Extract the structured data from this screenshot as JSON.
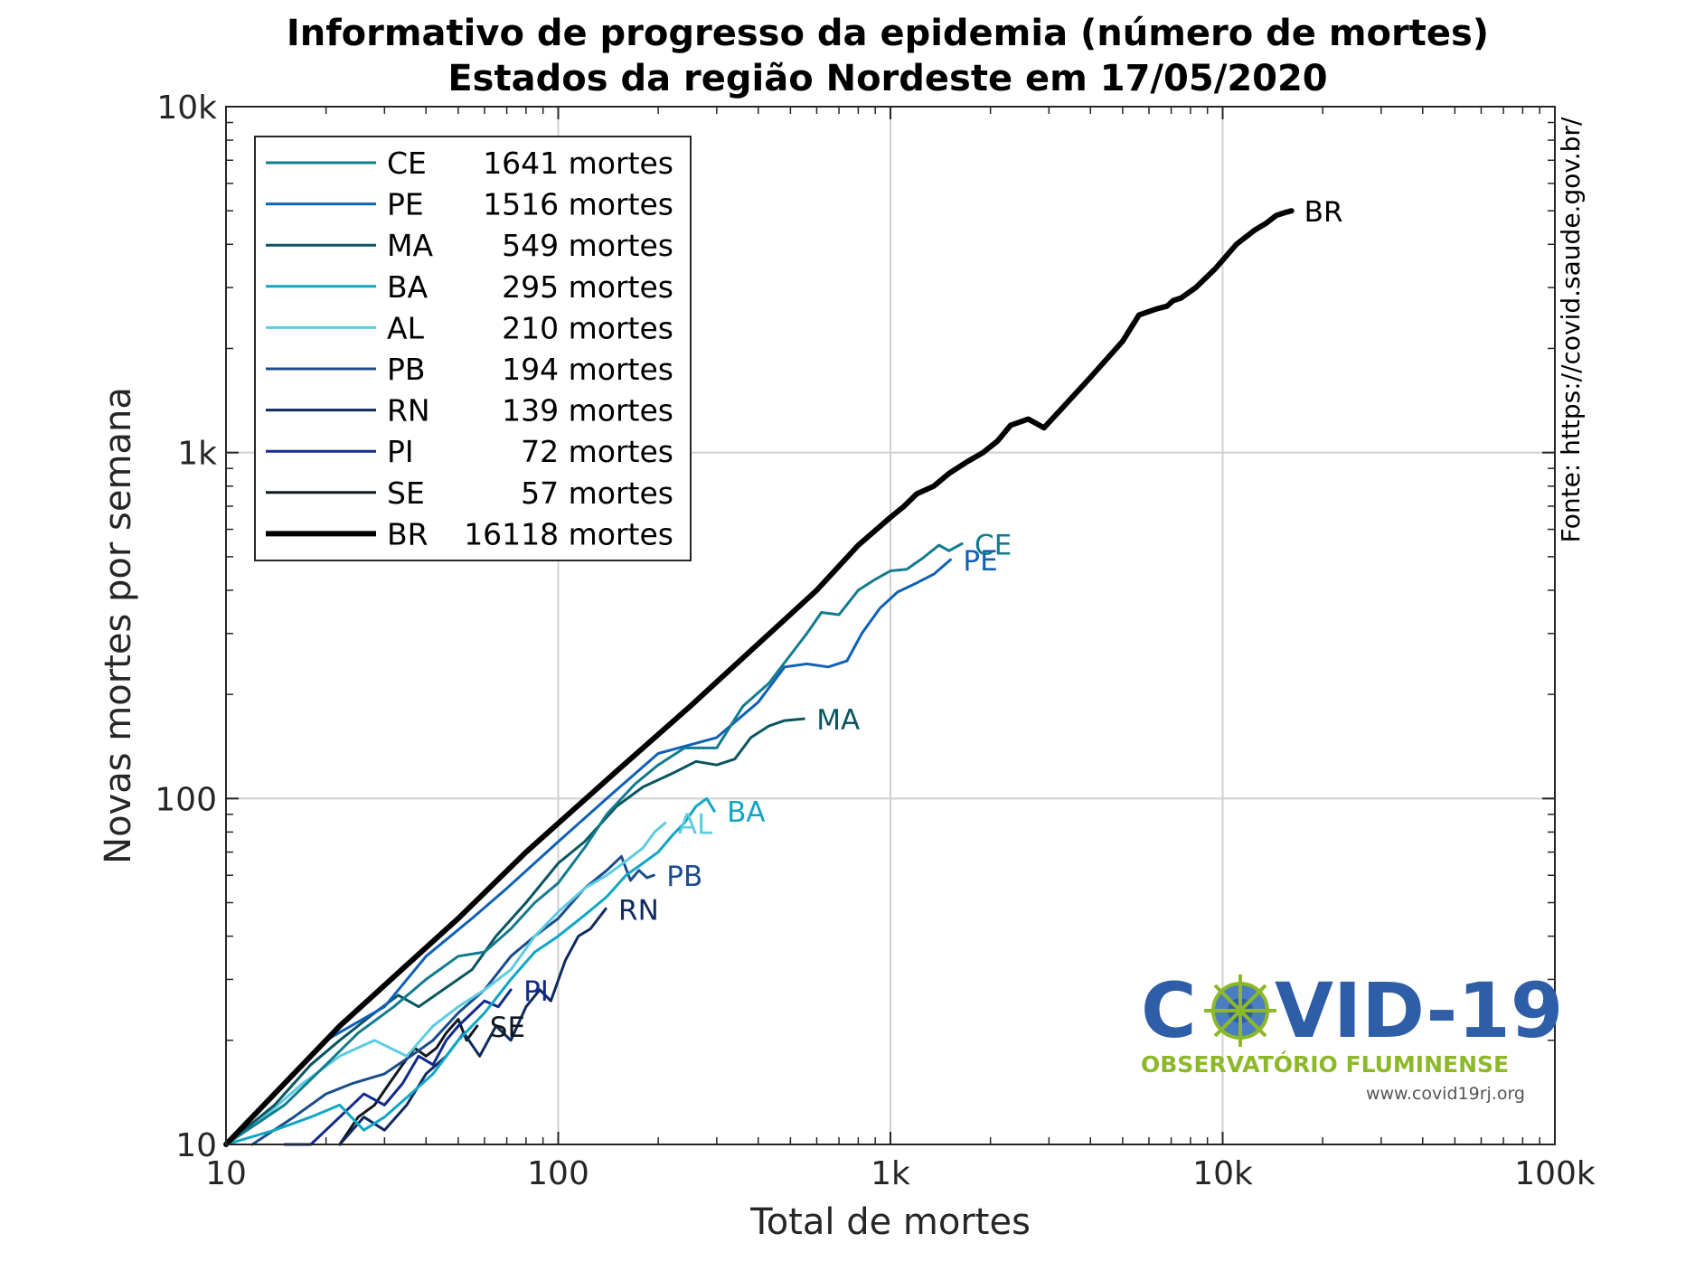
{
  "chart_data": {
    "type": "line",
    "title": "Informativo de progresso da epidemia (número de mortes)",
    "subtitle": "Estados da região Nordeste em 17/05/2020",
    "xlabel": "Total de mortes",
    "ylabel": "Novas mortes por semana",
    "xscale": "log",
    "yscale": "log",
    "xlim": [
      10,
      100000
    ],
    "ylim": [
      10,
      10000
    ],
    "xticks": [
      10,
      100,
      1000,
      10000,
      100000
    ],
    "xtick_labels": [
      "10",
      "100",
      "1k",
      "10k",
      "100k"
    ],
    "yticks": [
      10,
      100,
      1000,
      10000
    ],
    "ytick_labels": [
      "10",
      "100",
      "1k",
      "10k"
    ],
    "grid": true,
    "legend_position": "top-left",
    "source_note": "Fonte: https://covid.saude.gov.br/",
    "series": [
      {
        "name": "CE",
        "label": "1641 mortes",
        "color": "#127b8e",
        "width": 3,
        "x": [
          10,
          15,
          20,
          25,
          32,
          40,
          50,
          60,
          72,
          85,
          100,
          120,
          140,
          170,
          200,
          240,
          300,
          360,
          430,
          500,
          560,
          620,
          700,
          800,
          900,
          1000,
          1120,
          1250,
          1400,
          1500,
          1641
        ],
        "y": [
          10,
          13,
          17,
          21,
          25,
          30,
          35,
          36,
          42,
          50,
          57,
          72,
          90,
          110,
          125,
          140,
          140,
          185,
          215,
          260,
          300,
          345,
          340,
          400,
          430,
          455,
          460,
          495,
          540,
          520,
          545
        ]
      },
      {
        "name": "PE",
        "label": "1516 mortes",
        "color": "#1060b8",
        "width": 3,
        "x": [
          10,
          20,
          30,
          40,
          55,
          70,
          100,
          140,
          200,
          300,
          400,
          480,
          560,
          650,
          740,
          820,
          930,
          1050,
          1200,
          1350,
          1516
        ],
        "y": [
          10,
          20,
          25,
          35,
          45,
          55,
          75,
          100,
          135,
          150,
          190,
          240,
          245,
          240,
          250,
          300,
          355,
          395,
          420,
          445,
          490
        ]
      },
      {
        "name": "MA",
        "label": "549 mortes",
        "color": "#0b5560",
        "width": 3,
        "x": [
          10,
          14,
          18,
          22,
          28,
          33,
          38,
          45,
          55,
          65,
          80,
          100,
          120,
          150,
          180,
          220,
          260,
          300,
          340,
          380,
          430,
          480,
          549
        ],
        "y": [
          10,
          13,
          17,
          20,
          24,
          27,
          25,
          28,
          32,
          40,
          50,
          65,
          75,
          95,
          108,
          118,
          128,
          125,
          130,
          150,
          162,
          168,
          170
        ]
      },
      {
        "name": "BA",
        "label": "295 mortes",
        "color": "#10a6c6",
        "width": 3,
        "x": [
          10,
          14,
          18,
          22,
          26,
          30,
          36,
          42,
          50,
          60,
          72,
          85,
          100,
          120,
          140,
          160,
          180,
          200,
          220,
          240,
          260,
          280,
          295
        ],
        "y": [
          10,
          11,
          12,
          13,
          11,
          12,
          14,
          16,
          20,
          24,
          30,
          36,
          40,
          46,
          52,
          60,
          65,
          70,
          78,
          85,
          95,
          100,
          92
        ]
      },
      {
        "name": "AL",
        "label": "210 mortes",
        "color": "#5ccce0",
        "width": 3,
        "x": [
          10,
          13,
          17,
          22,
          28,
          35,
          42,
          50,
          60,
          72,
          85,
          100,
          120,
          140,
          160,
          180,
          195,
          210
        ],
        "y": [
          10,
          12,
          15,
          18,
          20,
          18,
          22,
          25,
          28,
          32,
          40,
          47,
          55,
          60,
          66,
          72,
          80,
          85
        ]
      },
      {
        "name": "PB",
        "label": "194 mortes",
        "color": "#1c4c8c",
        "width": 3,
        "x": [
          12,
          16,
          20,
          24,
          30,
          36,
          42,
          50,
          60,
          72,
          85,
          100,
          120,
          140,
          155,
          165,
          175,
          185,
          194
        ],
        "y": [
          10,
          12,
          14,
          15,
          16,
          18,
          20,
          24,
          28,
          35,
          40,
          45,
          55,
          62,
          68,
          58,
          62,
          59,
          60
        ]
      },
      {
        "name": "RN",
        "label": "139 mortes",
        "color": "#0f2a5e",
        "width": 3,
        "x": [
          22,
          26,
          30,
          35,
          40,
          46,
          52,
          58,
          65,
          72,
          80,
          88,
          95,
          105,
          115,
          125,
          139
        ],
        "y": [
          10,
          12,
          11,
          13,
          16,
          18,
          21,
          18,
          22,
          20,
          25,
          28,
          26,
          34,
          40,
          42,
          48
        ]
      },
      {
        "name": "PI",
        "label": "72 mortes",
        "color": "#132a8c",
        "width": 3,
        "x": [
          15,
          18,
          22,
          26,
          30,
          34,
          38,
          42,
          46,
          50,
          55,
          60,
          66,
          72
        ],
        "y": [
          10,
          10,
          12,
          14,
          13,
          15,
          18,
          17,
          20,
          22,
          24,
          26,
          25,
          28
        ]
      },
      {
        "name": "SE",
        "label": "57 mortes",
        "color": "#101820",
        "width": 3,
        "x": [
          22,
          25,
          28,
          31,
          34,
          37,
          40,
          43,
          46,
          50,
          53,
          57
        ],
        "y": [
          10,
          12,
          13,
          15,
          17,
          19,
          18,
          19,
          21,
          23,
          20,
          22
        ]
      },
      {
        "name": "BR",
        "label": "16118 mortes",
        "color": "#000000",
        "width": 6,
        "x": [
          10,
          15,
          22,
          35,
          50,
          80,
          150,
          250,
          400,
          600,
          800,
          1000,
          1100,
          1200,
          1350,
          1500,
          1700,
          1900,
          2100,
          2300,
          2600,
          2900,
          3300,
          4000,
          5000,
          5600,
          6300,
          6800,
          7100,
          7500,
          8300,
          9500,
          11000,
          12500,
          13500,
          14500,
          15500,
          16118
        ],
        "y": [
          10,
          15,
          22,
          33,
          45,
          70,
          120,
          185,
          280,
          400,
          540,
          650,
          700,
          760,
          800,
          870,
          940,
          1000,
          1080,
          1200,
          1250,
          1180,
          1350,
          1650,
          2100,
          2500,
          2600,
          2650,
          2750,
          2800,
          3000,
          3400,
          4000,
          4400,
          4600,
          4850,
          4950,
          5000
        ]
      }
    ]
  },
  "logo": {
    "main_text": "C●VID-19",
    "sub_text": "OBSERVATÓRIO FLUMINENSE",
    "url_text": "www.covid19rj.org",
    "main_color": "#2d5ea7",
    "sub_color": "#8db82a",
    "url_color": "#555555"
  }
}
